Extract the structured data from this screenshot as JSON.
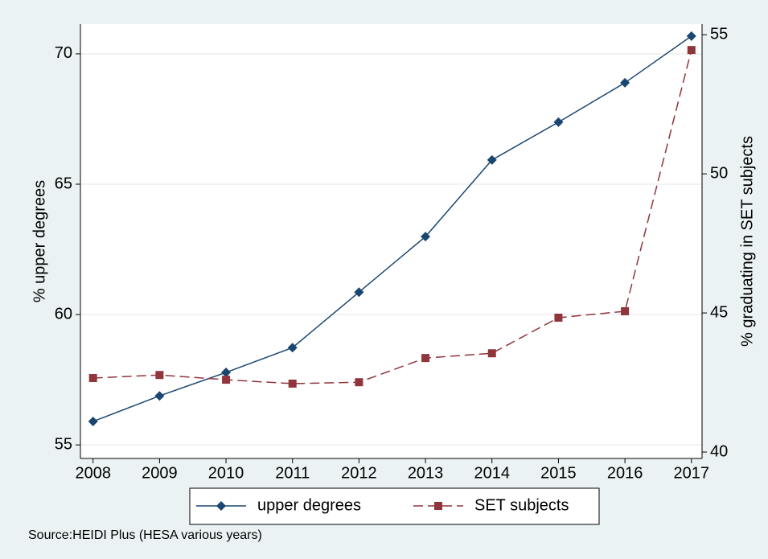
{
  "chart_data": {
    "type": "line",
    "x": [
      2008,
      2009,
      2010,
      2011,
      2012,
      2013,
      2014,
      2015,
      2016,
      2017
    ],
    "xlim": [
      2007.81,
      2017.16
    ],
    "xticks": [
      2008,
      2009,
      2010,
      2011,
      2012,
      2013,
      2014,
      2015,
      2016,
      2017
    ],
    "ylabel": "% upper degrees",
    "ylim": [
      54.48,
      71.14
    ],
    "yticks": [
      55,
      60,
      65,
      70
    ],
    "y2label": "% graduating in SET subjects",
    "y2lim": [
      39.77,
      55.38
    ],
    "y2ticks": [
      40,
      45,
      50,
      55
    ],
    "grid": true,
    "series": [
      {
        "name": "upper degrees",
        "color": "#1a476f",
        "marker": "diamond",
        "dash": "solid",
        "values": [
          55.9,
          56.88,
          57.78,
          58.73,
          60.86,
          62.99,
          65.93,
          67.38,
          68.89,
          70.68
        ]
      },
      {
        "name": "SET subjects",
        "color": "#90353b",
        "marker": "square",
        "dash": "dashed",
        "axis": "y2",
        "values": [
          42.66,
          42.77,
          42.6,
          42.46,
          42.51,
          43.38,
          43.55,
          44.83,
          45.06,
          54.45
        ]
      }
    ],
    "source": "Source:HEIDI Plus (HESA various years)"
  }
}
